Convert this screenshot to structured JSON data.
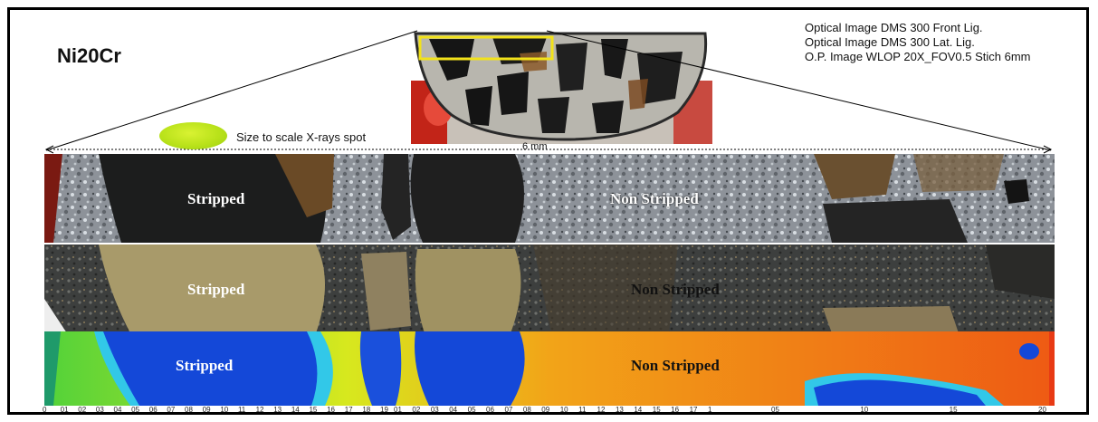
{
  "title": "Ni20Cr",
  "legend_lines": [
    "Optical Image DMS 300 Front Lig.",
    "Optical Image DMS 300 Lat. Lig.",
    "O.P. Image WLOP 20X_FOV0.5 Stich 6mm"
  ],
  "spot_label": "Size to scale X-rays spot",
  "scale_label": "6 mm",
  "strips": [
    {
      "name": "front-lighting",
      "labels": [
        "Stripped",
        "Non Stripped"
      ]
    },
    {
      "name": "lateral-lighting",
      "labels": [
        "Stripped",
        "Non Stripped"
      ]
    },
    {
      "name": "wlop-height-map",
      "labels": [
        "Stripped",
        "Non Stripped"
      ]
    }
  ],
  "axis_ticks": {
    "segment1": [
      "0",
      "01",
      "02",
      "03",
      "04",
      "05",
      "06",
      "07",
      "08",
      "09",
      "10",
      "11",
      "12",
      "13",
      "14",
      "15",
      "16",
      "17",
      "18",
      "19"
    ],
    "segment2": [
      "01",
      "02",
      "03",
      "04",
      "05",
      "06",
      "07",
      "08",
      "09",
      "10",
      "11",
      "12",
      "13",
      "14",
      "15",
      "16",
      "17",
      "1"
    ],
    "segment3": [
      "05",
      "10",
      "15",
      "20"
    ]
  },
  "colors": {
    "frame": "#000000",
    "highlight_box": "#f2e21a",
    "stripped_dark": "#1c1d1d",
    "stripped_gold": "#a89a6a",
    "map_low": "#1448d8",
    "map_high": "#ee5a14"
  }
}
